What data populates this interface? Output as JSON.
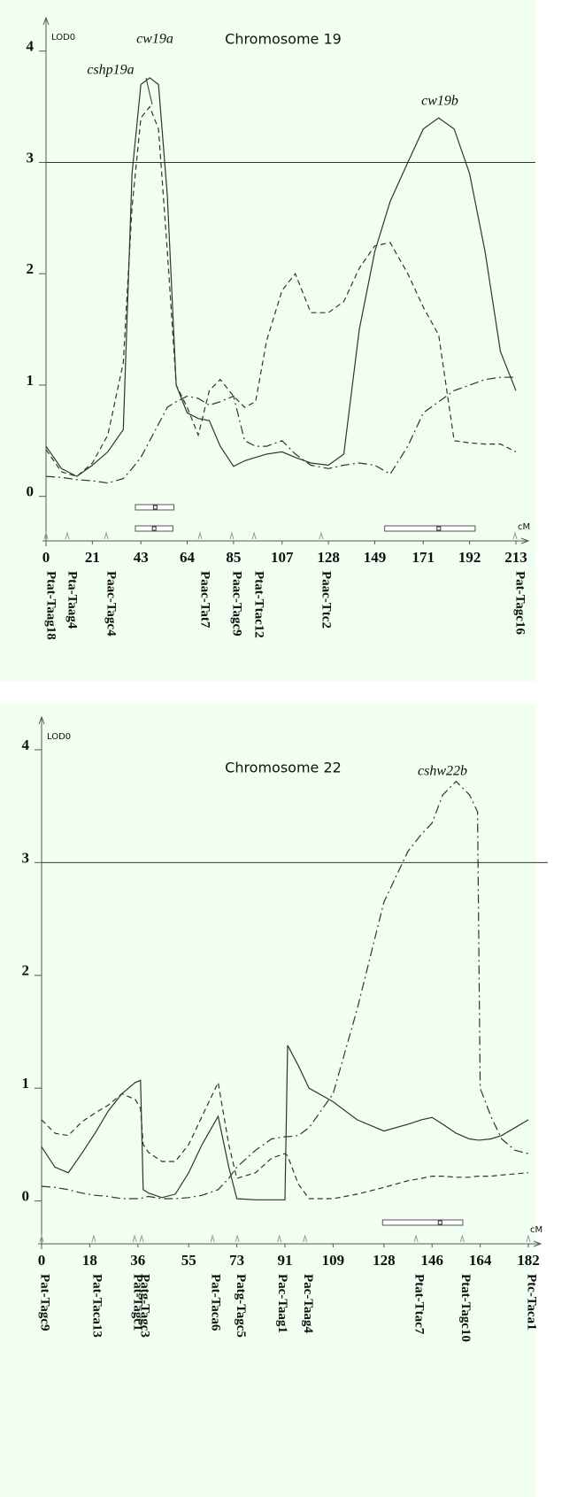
{
  "chart_data": [
    {
      "type": "line",
      "title": "Chromosome 19",
      "y_label": "LOD0",
      "x_label": "cM",
      "xlim": [
        0,
        213
      ],
      "xticks": [
        0,
        21,
        43,
        64,
        85,
        107,
        128,
        149,
        171,
        192,
        213
      ],
      "ylim": [
        -0.4,
        4.3
      ],
      "yticks": [
        0,
        1,
        2,
        3,
        4
      ],
      "threshold": 3,
      "x": [
        0,
        7,
        14,
        21,
        28,
        35,
        39,
        43,
        47,
        51,
        55,
        59,
        64,
        69,
        74,
        79,
        85,
        90,
        95,
        100,
        107,
        113,
        120,
        128,
        135,
        142,
        149,
        156,
        164,
        171,
        178,
        185,
        192,
        199,
        206,
        213
      ],
      "series": [
        {
          "style": "solid",
          "color": "#333333",
          "values": [
            0.45,
            0.25,
            0.18,
            0.28,
            0.4,
            0.6,
            2.9,
            3.7,
            3.76,
            3.7,
            2.7,
            1.0,
            0.75,
            0.7,
            0.68,
            0.45,
            0.27,
            0.32,
            0.35,
            0.38,
            0.4,
            0.35,
            0.3,
            0.28,
            0.38,
            1.5,
            2.2,
            2.65,
            3.0,
            3.3,
            3.4,
            3.3,
            2.9,
            2.2,
            1.3,
            0.95
          ]
        },
        {
          "style": "dashed",
          "color": "#333333",
          "values": [
            0.42,
            0.22,
            0.18,
            0.3,
            0.55,
            1.2,
            2.6,
            3.4,
            3.5,
            3.3,
            2.2,
            1.0,
            0.8,
            0.55,
            0.95,
            1.05,
            0.9,
            0.8,
            0.85,
            1.4,
            1.85,
            2.0,
            1.65,
            1.65,
            1.75,
            2.05,
            2.25,
            2.28,
            2.0,
            1.7,
            1.45,
            0.5,
            0.48,
            0.47,
            0.47,
            0.4
          ]
        },
        {
          "style": "dashdot",
          "color": "#333333",
          "values": [
            0.18,
            0.17,
            0.15,
            0.14,
            0.12,
            0.16,
            0.25,
            0.35,
            0.5,
            0.65,
            0.8,
            0.85,
            0.9,
            0.88,
            0.82,
            0.85,
            0.9,
            0.5,
            0.45,
            0.45,
            0.5,
            0.38,
            0.28,
            0.25,
            0.28,
            0.3,
            0.28,
            0.2,
            0.45,
            0.75,
            0.85,
            0.95,
            1.0,
            1.05,
            1.07,
            1.07
          ]
        }
      ],
      "annotations": [
        "cw19a",
        "cshp19a",
        "cw19b"
      ],
      "intervals": [
        {
          "start": 40.5,
          "end": 58,
          "peak": 49.5
        },
        {
          "start": 40.5,
          "end": 57.5,
          "peak": 49
        },
        {
          "start": 153.5,
          "end": 194.5,
          "peak": 178
        }
      ],
      "markers": [
        {
          "name": "Ptat-Taag18",
          "position": 0
        },
        {
          "name": "Pta-Taag4",
          "position": 9.6
        },
        {
          "name": "Paac-Tagc4",
          "position": 27.3
        },
        {
          "name": "Paac-Tat7",
          "position": 69.8
        },
        {
          "name": "Paac-Tagc9",
          "position": 84.2
        },
        {
          "name": "Ptat-Ttac12",
          "position": 94.3
        },
        {
          "name": "Paac-Ttc2",
          "position": 124.7
        },
        {
          "name": "Pat-Tagc16",
          "position": 212.6
        }
      ]
    },
    {
      "type": "line",
      "title": "Chromosome 22",
      "y_label": "LOD0",
      "x_label": "cM",
      "xlim": [
        0,
        182
      ],
      "xticks": [
        0,
        18,
        36,
        55,
        73,
        91,
        109,
        128,
        146,
        164,
        182
      ],
      "ylim": [
        -0.38,
        4.29
      ],
      "yticks": [
        0,
        1,
        2,
        3,
        4
      ],
      "threshold": 3,
      "x": [
        0,
        5,
        10,
        15,
        20,
        25,
        30,
        35,
        37,
        38,
        40,
        45,
        50,
        55,
        60,
        66,
        70,
        73,
        80,
        86,
        91,
        92,
        96,
        100,
        109,
        118,
        128,
        137,
        142,
        146,
        150,
        155,
        160,
        163,
        164,
        168,
        172,
        177,
        182
      ],
      "series": [
        {
          "style": "solid",
          "color": "#333333",
          "values": [
            0.48,
            0.3,
            0.25,
            0.42,
            0.6,
            0.8,
            0.95,
            1.05,
            1.07,
            0.1,
            0.07,
            0.03,
            0.06,
            0.25,
            0.5,
            0.75,
            0.3,
            0.02,
            0.01,
            0.01,
            0.01,
            1.38,
            1.2,
            1.0,
            0.88,
            0.72,
            0.62,
            0.68,
            0.72,
            0.74,
            0.68,
            0.6,
            0.55,
            0.54,
            0.54,
            0.55,
            0.58,
            0.65,
            0.72
          ]
        },
        {
          "style": "dashed",
          "color": "#333333",
          "values": [
            0.72,
            0.6,
            0.58,
            0.7,
            0.78,
            0.85,
            0.95,
            0.9,
            0.82,
            0.5,
            0.43,
            0.35,
            0.35,
            0.5,
            0.75,
            1.05,
            0.5,
            0.2,
            0.25,
            0.38,
            0.42,
            0.4,
            0.15,
            0.02,
            0.02,
            0.06,
            0.12,
            0.18,
            0.2,
            0.22,
            0.22,
            0.21,
            0.21,
            0.22,
            0.22,
            0.22,
            0.23,
            0.24,
            0.25
          ]
        },
        {
          "style": "dashdot",
          "color": "#333333",
          "values": [
            0.13,
            0.12,
            0.1,
            0.07,
            0.05,
            0.04,
            0.02,
            0.02,
            0.02,
            0.03,
            0.04,
            0.02,
            0.02,
            0.03,
            0.05,
            0.1,
            0.2,
            0.3,
            0.45,
            0.55,
            0.57,
            0.57,
            0.58,
            0.65,
            0.95,
            1.7,
            2.65,
            3.1,
            3.25,
            3.35,
            3.6,
            3.72,
            3.6,
            3.45,
            1.0,
            0.75,
            0.55,
            0.45,
            0.42
          ]
        }
      ],
      "annotations": [
        "cshw22b"
      ],
      "intervals": [
        {
          "start": 127.5,
          "end": 157.5,
          "peak": 149
        }
      ],
      "markers": [
        {
          "name": "Pat-Tagc9",
          "position": 0
        },
        {
          "name": "Pat-Taca13",
          "position": 19.5
        },
        {
          "name": "Pat-Tagc1",
          "position": 34.8
        },
        {
          "name": "Patg-Tagc3",
          "position": 37.4
        },
        {
          "name": "Pat-Taca6",
          "position": 63.9
        },
        {
          "name": "Patg-Tagc5",
          "position": 73.2
        },
        {
          "name": "Pac-Taag1",
          "position": 88.9
        },
        {
          "name": "Pac-Taag4",
          "position": 98.5
        },
        {
          "name": "Ptat-Ttac7",
          "position": 140
        },
        {
          "name": "Ptat-Tagc10",
          "position": 157.3
        },
        {
          "name": "Ptc-Taca1",
          "position": 182
        }
      ]
    }
  ]
}
